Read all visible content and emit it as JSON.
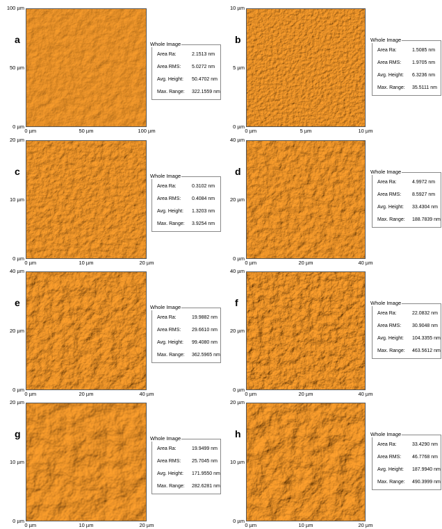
{
  "panels": [
    {
      "letter": "a",
      "yticks": [
        "100 µm",
        "50 µm",
        "0 µm"
      ],
      "xticks": [
        "0 µm",
        "50 µm",
        "100 µm"
      ],
      "box": {
        "title": "Whole Image",
        "rows": [
          [
            "Area Ra:",
            "2.1513 nm"
          ],
          [
            "Area RMS:",
            "5.0272 nm"
          ],
          [
            "Avg. Height:",
            "50.4702 nm"
          ],
          [
            "Max. Range:",
            "322.1559 nm"
          ]
        ]
      }
    },
    {
      "letter": "b",
      "yticks": [
        "10 µm",
        "5 µm",
        "0 µm"
      ],
      "xticks": [
        "0 µm",
        "5 µm",
        "10 µm"
      ],
      "box": {
        "title": "Whole Image",
        "rows": [
          [
            "Area Ra:",
            "1.5085 nm"
          ],
          [
            "Area RMS:",
            "1.9705 nm"
          ],
          [
            "Avg. Height:",
            "6.3236 nm"
          ],
          [
            "Max. Range:",
            "35.5111 nm"
          ]
        ]
      }
    },
    {
      "letter": "c",
      "yticks": [
        "20 µm",
        "10 µm",
        "0 µm"
      ],
      "xticks": [
        "0 µm",
        "10 µm",
        "20 µm"
      ],
      "box": {
        "title": "Whole Image",
        "rows": [
          [
            "Area Ra:",
            "0.3102 nm"
          ],
          [
            "Area RMS:",
            "0.4084 nm"
          ],
          [
            "Avg. Height:",
            "1.3203 nm"
          ],
          [
            "Max. Range:",
            "3.9254 nm"
          ]
        ]
      }
    },
    {
      "letter": "d",
      "yticks": [
        "40 µm",
        "20 µm",
        "0 µm"
      ],
      "xticks": [
        "0 µm",
        "20 µm",
        "40 µm"
      ],
      "box": {
        "title": "Whole Image",
        "rows": [
          [
            "Area Ra:",
            "4.9972 nm"
          ],
          [
            "Area RMS:",
            "8.5927 nm"
          ],
          [
            "Avg. Height:",
            "33.4304 nm"
          ],
          [
            "Max. Range:",
            "188.7839 nm"
          ]
        ]
      }
    },
    {
      "letter": "e",
      "yticks": [
        "40 µm",
        "20 µm",
        "0 µm"
      ],
      "xticks": [
        "0 µm",
        "20 µm",
        "40 µm"
      ],
      "box": {
        "title": "Whole Image",
        "rows": [
          [
            "Area Ra:",
            "19.9882 nm"
          ],
          [
            "Area RMS:",
            "29.6610 nm"
          ],
          [
            "Avg. Height:",
            "99.4080 nm"
          ],
          [
            "Max. Range:",
            "362.5965 nm"
          ]
        ]
      }
    },
    {
      "letter": "f",
      "yticks": [
        "40 µm",
        "20 µm",
        "0 µm"
      ],
      "xticks": [
        "0 µm",
        "20 µm",
        "40 µm"
      ],
      "box": {
        "title": "Whole Image",
        "rows": [
          [
            "Area Ra:",
            "22.0832 nm"
          ],
          [
            "Area RMS:",
            "30.9048 nm"
          ],
          [
            "Avg. Height:",
            "104.3355 nm"
          ],
          [
            "Max. Range:",
            "463.5612 nm"
          ]
        ]
      }
    },
    {
      "letter": "g",
      "yticks": [
        "20 µm",
        "10 µm",
        "0 µm"
      ],
      "xticks": [
        "0 µm",
        "10 µm",
        "20 µm"
      ],
      "box": {
        "title": "Whole Image",
        "rows": [
          [
            "Area Ra:",
            "19.9499 nm"
          ],
          [
            "Area RMS:",
            "25.7045 nm"
          ],
          [
            "Avg. Height:",
            "171.9550 nm"
          ],
          [
            "Max. Range:",
            "282.6281 nm"
          ]
        ]
      }
    },
    {
      "letter": "h",
      "yticks": [
        "20 µm",
        "10 µm",
        "0 µm"
      ],
      "xticks": [
        "0 µm",
        "10 µm",
        "20 µm"
      ],
      "box": {
        "title": "Whole Image",
        "rows": [
          [
            "Area Ra:",
            "33.4290 nm"
          ],
          [
            "Area RMS:",
            "46.7768 nm"
          ],
          [
            "Avg. Height:",
            "187.9940 nm"
          ],
          [
            "Max. Range:",
            "490.3999 nm"
          ]
        ]
      }
    }
  ]
}
